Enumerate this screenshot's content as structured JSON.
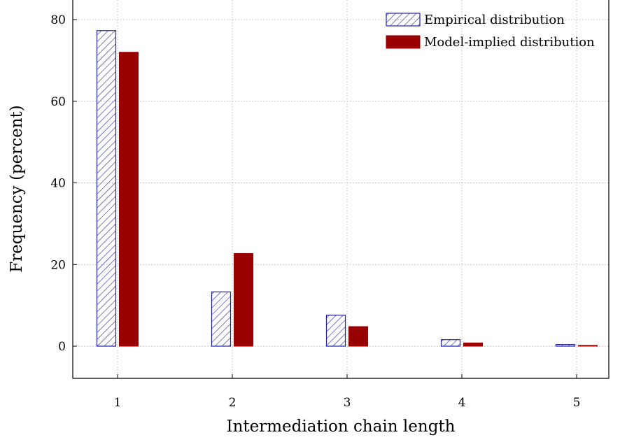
{
  "chart_data": {
    "type": "bar",
    "title": "",
    "xlabel": "Intermediation chain length",
    "ylabel": "Frequency (percent)",
    "categories": [
      "1",
      "2",
      "3",
      "4",
      "5"
    ],
    "series": [
      {
        "name": "Empirical distribution",
        "values": [
          77.3,
          13.3,
          7.6,
          1.6,
          0.4
        ],
        "color": "#1f1fa8",
        "style": "hatched"
      },
      {
        "name": "Model-implied distribution",
        "values": [
          72.0,
          22.7,
          4.8,
          0.8,
          0.2
        ],
        "color": "#990000",
        "style": "solid"
      }
    ],
    "y_ticks": [
      0,
      20,
      40,
      60,
      80
    ],
    "ylim": [
      -8,
      85
    ],
    "grid": true,
    "legend_position": "top-right"
  }
}
